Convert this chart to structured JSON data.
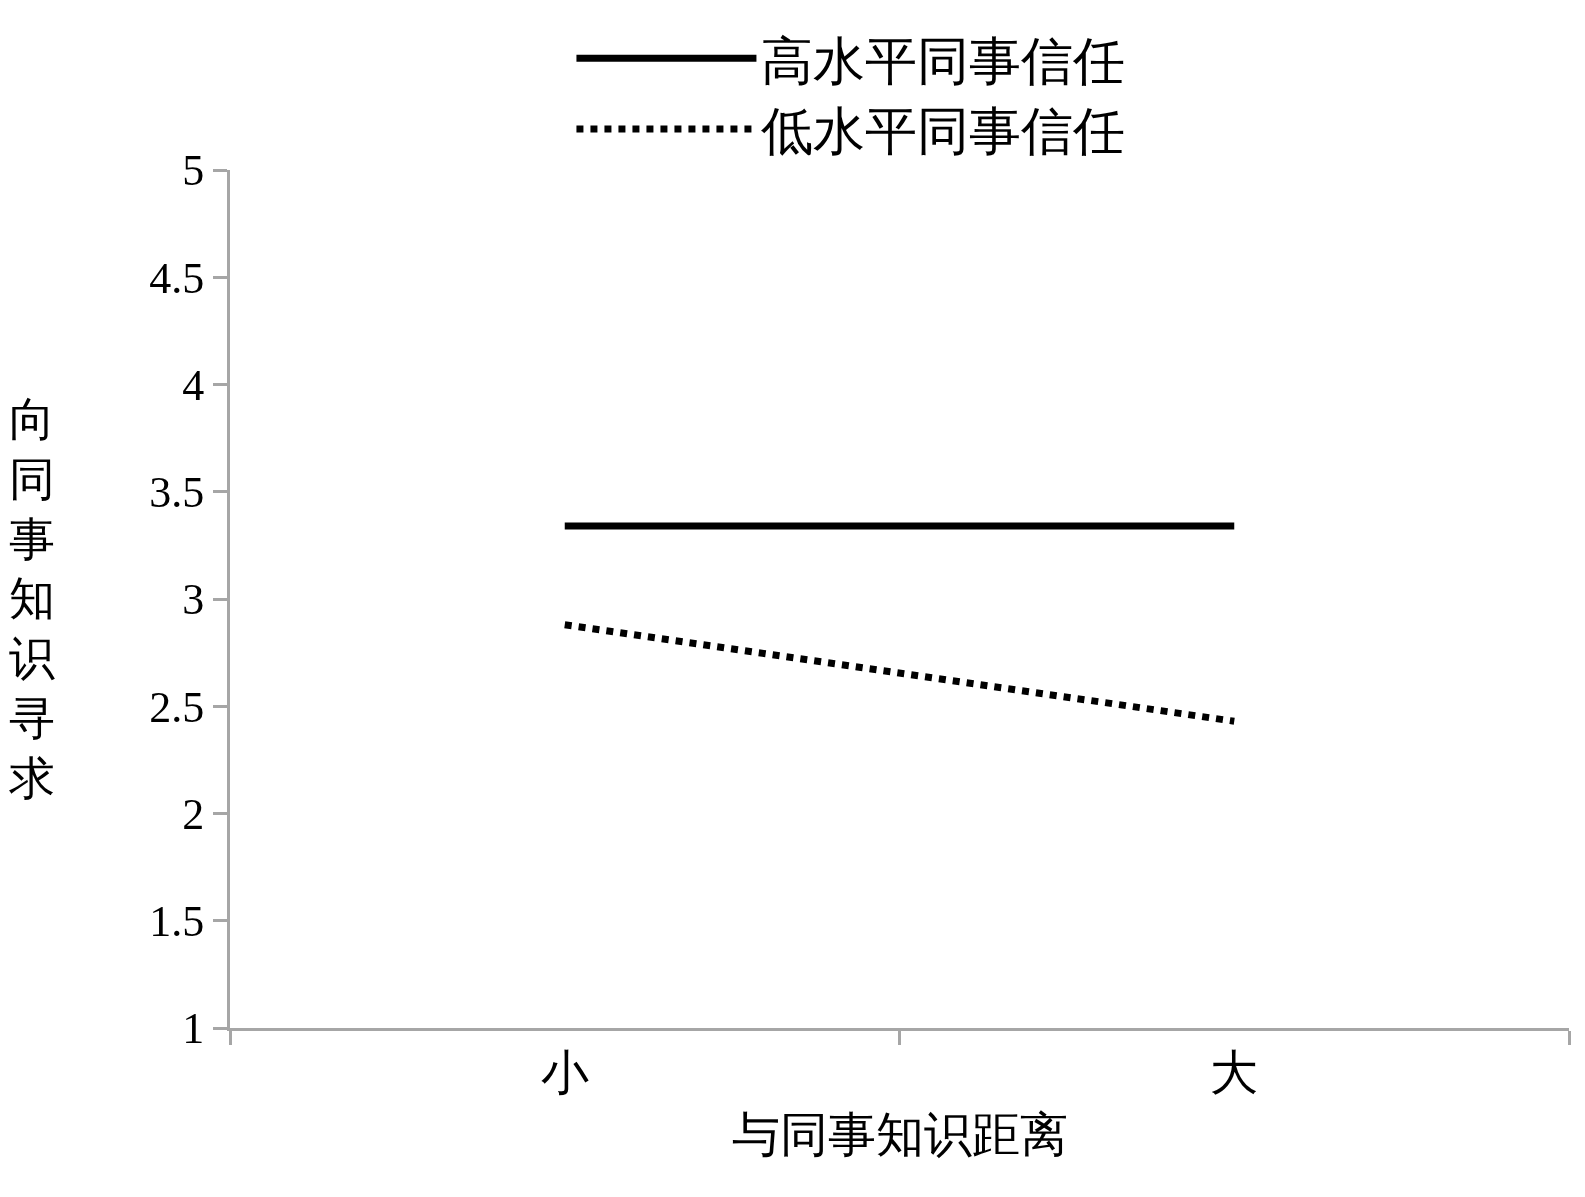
{
  "chart_data": {
    "type": "line",
    "xlabel": "与同事知识距离",
    "ylabel": "向同事知识寻求",
    "categories": [
      "小",
      "大"
    ],
    "series": [
      {
        "name": "高水平同事信任",
        "color": "#000000",
        "values": [
          3.34,
          3.34
        ],
        "line_style": "solid"
      },
      {
        "name": "低水平同事信任",
        "color": "#000000",
        "values": [
          2.88,
          2.43
        ],
        "line_style": "dotted"
      }
    ],
    "ylim": [
      1,
      5
    ],
    "yticks": [
      1,
      1.5,
      2,
      2.5,
      3,
      3.5,
      4,
      4.5,
      5
    ],
    "legend": "top",
    "marker": "none"
  }
}
